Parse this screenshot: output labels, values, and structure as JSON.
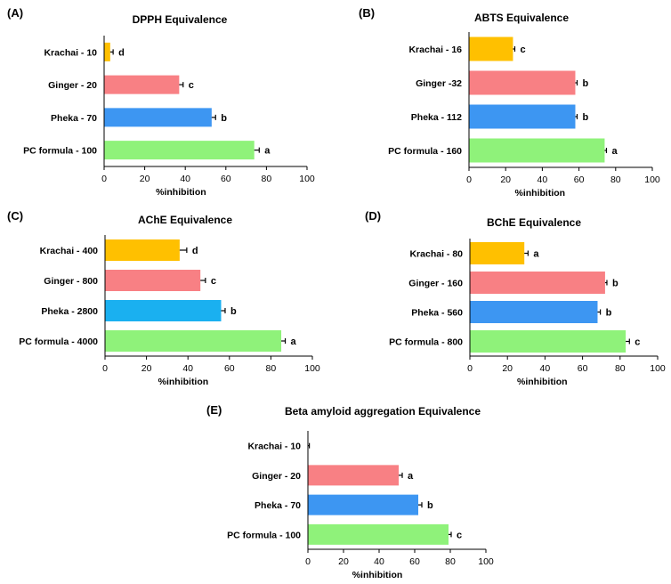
{
  "chart_data": [
    {
      "panel": "(A)",
      "type": "bar",
      "orientation": "horizontal",
      "title": "DPPH Equivalence",
      "xlabel": "%inhibition",
      "xlim": [
        0,
        100
      ],
      "xticks": [
        0,
        20,
        40,
        60,
        80,
        100
      ],
      "categories": [
        "Krachai - 10",
        "Ginger - 20",
        "Pheka - 70",
        "PC formula - 100"
      ],
      "values": [
        3,
        37,
        53,
        74
      ],
      "errors": [
        1,
        1.5,
        1.5,
        2
      ],
      "letters": [
        "d",
        "c",
        "b",
        "a"
      ],
      "colors": [
        "#FFC000",
        "#F88084",
        "#3D96F2",
        "#8FF27A"
      ]
    },
    {
      "panel": "(B)",
      "type": "bar",
      "orientation": "horizontal",
      "title": "ABTS Equivalence",
      "xlabel": "%inhibition",
      "xlim": [
        0,
        100
      ],
      "xticks": [
        0,
        20,
        40,
        60,
        80,
        100
      ],
      "categories": [
        "Krachai - 16",
        "Ginger -32",
        "Pheka - 112",
        "PC formula - 160"
      ],
      "values": [
        24,
        58,
        58,
        74
      ],
      "errors": [
        0.5,
        0.5,
        0.5,
        0.5
      ],
      "letters": [
        "c",
        "b",
        "b",
        "a"
      ],
      "colors": [
        "#FFC000",
        "#F88084",
        "#3D96F2",
        "#8FF27A"
      ]
    },
    {
      "panel": "(C)",
      "type": "bar",
      "orientation": "horizontal",
      "title": "AChE Equivalence",
      "xlabel": "%inhibition",
      "xlim": [
        0,
        100
      ],
      "xticks": [
        0,
        20,
        40,
        60,
        80,
        100
      ],
      "categories": [
        "Krachai - 400",
        "Ginger - 800",
        "Pheka - 2800",
        "PC formula - 4000"
      ],
      "values": [
        36,
        46,
        56,
        85
      ],
      "errors": [
        3,
        2,
        1.5,
        1.5
      ],
      "letters": [
        "d",
        "c",
        "b",
        "a"
      ],
      "colors": [
        "#FFC000",
        "#F88084",
        "#1AB0F0",
        "#8FF27A"
      ]
    },
    {
      "panel": "(D)",
      "type": "bar",
      "orientation": "horizontal",
      "title": "BChE Equivalence",
      "xlabel": "%inhibition",
      "xlim": [
        0,
        100
      ],
      "xticks": [
        0,
        20,
        40,
        60,
        80,
        100
      ],
      "categories": [
        "Krachai - 80",
        "Ginger - 160",
        "Pheka - 560",
        "PC formula - 800"
      ],
      "values": [
        29,
        72,
        68,
        83
      ],
      "errors": [
        1.5,
        0.5,
        1,
        1.5
      ],
      "letters": [
        "a",
        "b",
        "b",
        "c"
      ],
      "colors": [
        "#FFC000",
        "#F88084",
        "#3D96F2",
        "#8FF27A"
      ]
    },
    {
      "panel": "(E)",
      "type": "bar",
      "orientation": "horizontal",
      "title": "Beta amyloid  aggregation  Equivalence",
      "xlabel": "%inhibition",
      "xlim": [
        0,
        100
      ],
      "xticks": [
        0,
        20,
        40,
        60,
        80,
        100
      ],
      "categories": [
        "Krachai - 10",
        "Ginger - 20",
        "Pheka - 70",
        "PC formula - 100"
      ],
      "values": [
        0,
        51,
        62,
        79
      ],
      "errors": [
        0.3,
        1.5,
        1.5,
        1
      ],
      "letters": [
        "",
        "a",
        "b",
        "c"
      ],
      "colors": [
        "#FFC000",
        "#F88084",
        "#3D96F2",
        "#8FF27A"
      ]
    }
  ]
}
